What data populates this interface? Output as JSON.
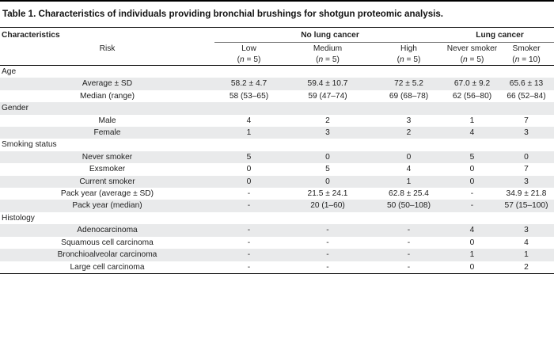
{
  "caption": "Table 1. Characteristics of individuals providing bronchial brushings for shotgun proteomic analysis.",
  "header": {
    "characteristics": "Characteristics",
    "no_lung_cancer": "No lung cancer",
    "lung_cancer": "Lung cancer",
    "risk": "Risk",
    "columns": [
      {
        "label": "Low",
        "n_prefix": "(",
        "n_var": "n",
        "n_suffix": " = 5)"
      },
      {
        "label": "Medium",
        "n_prefix": "(",
        "n_var": "n",
        "n_suffix": " = 5)"
      },
      {
        "label": "High",
        "n_prefix": "(",
        "n_var": "n",
        "n_suffix": " = 5)"
      },
      {
        "label": "Never smoker",
        "n_prefix": "(",
        "n_var": "n",
        "n_suffix": " = 5)"
      },
      {
        "label": "Smoker",
        "n_prefix": "(",
        "n_var": "n",
        "n_suffix": " = 10)"
      }
    ]
  },
  "sections": [
    {
      "title": "Age",
      "rows": [
        {
          "label": "Average ± SD",
          "values": [
            "58.2 ± 4.7",
            "59.4 ± 10.7",
            "72 ± 5.2",
            "67.0 ± 9.2",
            "65.6 ± 13"
          ]
        },
        {
          "label": "Median (range)",
          "values": [
            "58 (53–65)",
            "59 (47–74)",
            "69 (68–78)",
            "62 (56–80)",
            "66 (52–84)"
          ]
        }
      ]
    },
    {
      "title": "Gender",
      "rows": [
        {
          "label": "Male",
          "values": [
            "4",
            "2",
            "3",
            "1",
            "7"
          ]
        },
        {
          "label": "Female",
          "values": [
            "1",
            "3",
            "2",
            "4",
            "3"
          ]
        }
      ]
    },
    {
      "title": "Smoking status",
      "rows": [
        {
          "label": "Never smoker",
          "values": [
            "5",
            "0",
            "0",
            "5",
            "0"
          ]
        },
        {
          "label": "Exsmoker",
          "values": [
            "0",
            "5",
            "4",
            "0",
            "7"
          ]
        },
        {
          "label": "Current smoker",
          "values": [
            "0",
            "0",
            "1",
            "0",
            "3"
          ]
        },
        {
          "label": "Pack year (average ± SD)",
          "values": [
            "-",
            "21.5 ± 24.1",
            "62.8 ± 25.4",
            "-",
            "34.9 ± 21.8"
          ]
        },
        {
          "label": "Pack year (median)",
          "values": [
            "-",
            "20 (1–60)",
            "50 (50–108)",
            "-",
            "57 (15–100)"
          ]
        }
      ]
    },
    {
      "title": "Histology",
      "rows": [
        {
          "label": "Adenocarcinoma",
          "values": [
            "-",
            "-",
            "-",
            "4",
            "3"
          ]
        },
        {
          "label": "Squamous cell carcinoma",
          "values": [
            "-",
            "-",
            "-",
            "0",
            "4"
          ]
        },
        {
          "label": "Bronchioalveolar carcinoma",
          "values": [
            "-",
            "-",
            "-",
            "1",
            "1"
          ]
        },
        {
          "label": "Large cell carcinoma",
          "values": [
            "-",
            "-",
            "-",
            "0",
            "2"
          ]
        }
      ]
    }
  ]
}
